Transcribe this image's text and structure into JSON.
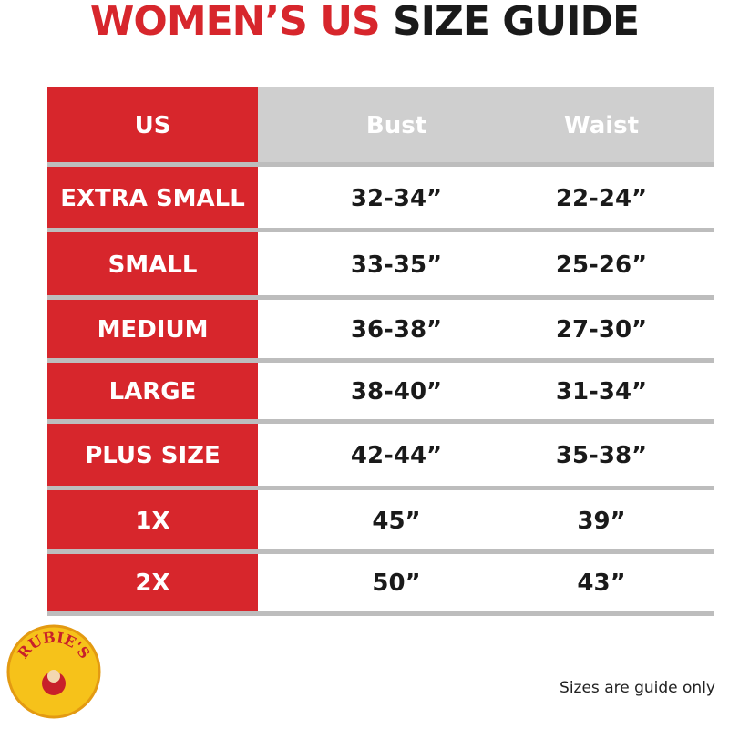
{
  "header": {
    "title_red": "WOMEN’S US",
    "title_black": "SIZE GUIDE"
  },
  "table": {
    "columns": [
      "US",
      "Bust",
      "Waist"
    ],
    "rows": [
      [
        "EXTRA SMALL",
        "32-34”",
        "22-24”"
      ],
      [
        "SMALL",
        "33-35”",
        "25-26”"
      ],
      [
        "MEDIUM",
        "36-38”",
        "27-30”"
      ],
      [
        "LARGE",
        "38-40”",
        "31-34”"
      ],
      [
        "PLUS SIZE",
        "42-44”",
        "35-38”"
      ],
      [
        "1X",
        "45”",
        "39”"
      ],
      [
        "2X",
        "50”",
        "43”"
      ]
    ]
  },
  "logo": {
    "text": "RUBIE'S"
  },
  "footer": {
    "note": "Sizes are guide only"
  }
}
